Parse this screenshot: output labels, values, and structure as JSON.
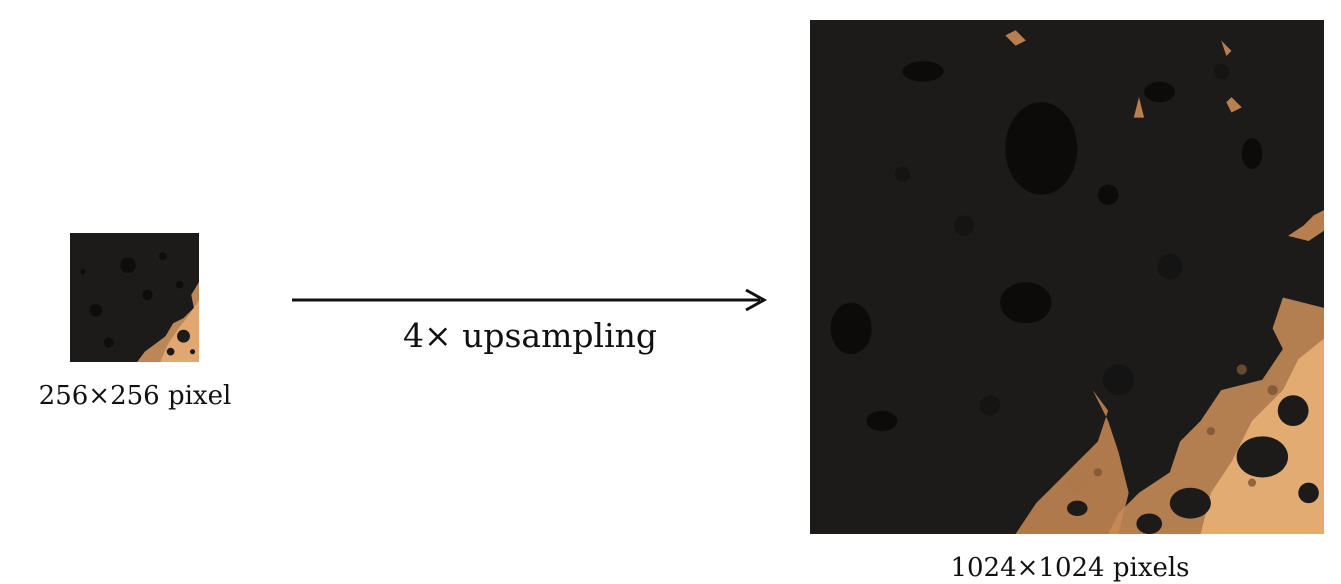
{
  "diagram": {
    "input": {
      "label": "256×256 pixel",
      "icon": "micrograph-thumbnail"
    },
    "operation": {
      "label": "4× upsampling",
      "icon": "right-arrow-icon"
    },
    "output": {
      "label": "1024×1024 pixels",
      "icon": "micrograph-upsampled"
    },
    "colors": {
      "background_dark": "#1c1b1a",
      "dark_spots": "#0c0b0a",
      "highlight_orange": "#e8a86a",
      "highlight_bright": "#f4c28a",
      "text": "#111111"
    }
  }
}
